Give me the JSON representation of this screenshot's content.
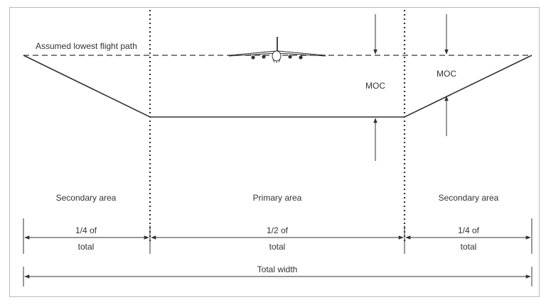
{
  "labels": {
    "flight_path": "Assumed lowest flight path",
    "moc_primary": "MOC",
    "moc_secondary": "MOC",
    "secondary_left": "Secondary area",
    "primary": "Primary area",
    "secondary_right": "Secondary area",
    "frac_left_1": "1/4 of",
    "frac_left_2": "total",
    "frac_mid_1": "1/2 of",
    "frac_mid_2": "total",
    "frac_right_1": "1/4 of",
    "frac_right_2": "total",
    "total_width": "Total width"
  },
  "colors": {
    "line": "#333333",
    "frame": "#bbbbbb"
  },
  "icons": {
    "aircraft": "aircraft-front-view-icon"
  }
}
